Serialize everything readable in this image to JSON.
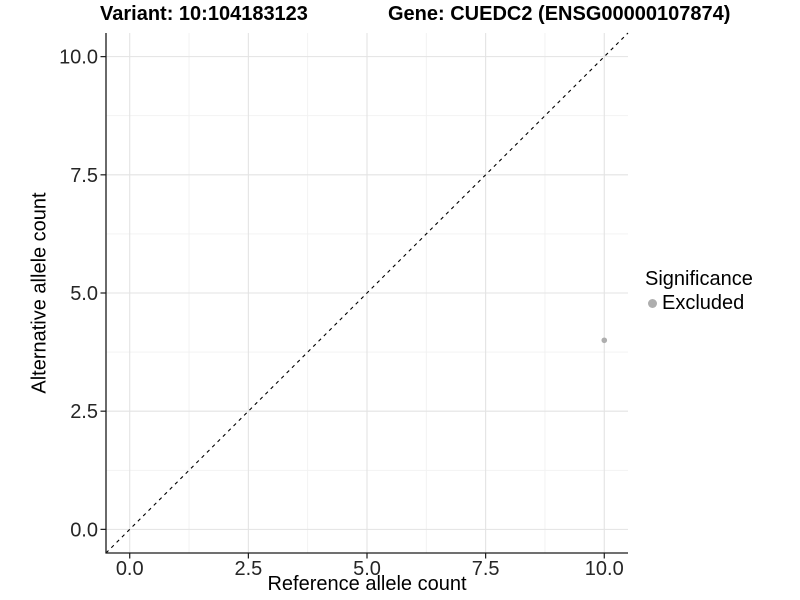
{
  "chart_data": {
    "type": "scatter",
    "titles": {
      "left": "Variant: 10:104183123",
      "right": "Gene: CUEDC2 (ENSG00000107874)"
    },
    "xlabel": "Reference allele count",
    "ylabel": "Alternative allele count",
    "xlim": [
      -0.5,
      10.5
    ],
    "ylim": [
      -0.5,
      10.5
    ],
    "x_ticks": {
      "values": [
        0,
        2.5,
        5,
        7.5,
        10
      ],
      "labels": [
        "0.0",
        "2.5",
        "5.0",
        "7.5",
        "10.0"
      ]
    },
    "y_ticks": {
      "values": [
        0,
        2.5,
        5,
        7.5,
        10
      ],
      "labels": [
        "0.0",
        "2.5",
        "5.0",
        "7.5",
        "10.0"
      ]
    },
    "minor_gridlines": [
      1.25,
      3.75,
      6.25,
      8.75
    ],
    "grid": {
      "show_major": true,
      "show_minor": true
    },
    "reference_line": {
      "style": "dashed",
      "x1": -0.5,
      "y1": -0.5,
      "x2": 10.5,
      "y2": 10.5,
      "color": "#000000"
    },
    "series": [
      {
        "name": "Excluded",
        "color": "#aeaeae",
        "points": [
          {
            "x": 10,
            "y": 4
          }
        ]
      }
    ],
    "legend": {
      "title": "Significance",
      "position": "right",
      "items": [
        {
          "label": "Excluded",
          "color": "#aeaeae"
        }
      ]
    }
  },
  "colors": {
    "background": "#ffffff",
    "grid_major": "#e3e3e3",
    "grid_minor": "#f1f1f1",
    "axis_line": "#1a1a1a",
    "tick_mark": "#1a1a1a",
    "tick_label": "#262626",
    "title_text": "#000000"
  }
}
